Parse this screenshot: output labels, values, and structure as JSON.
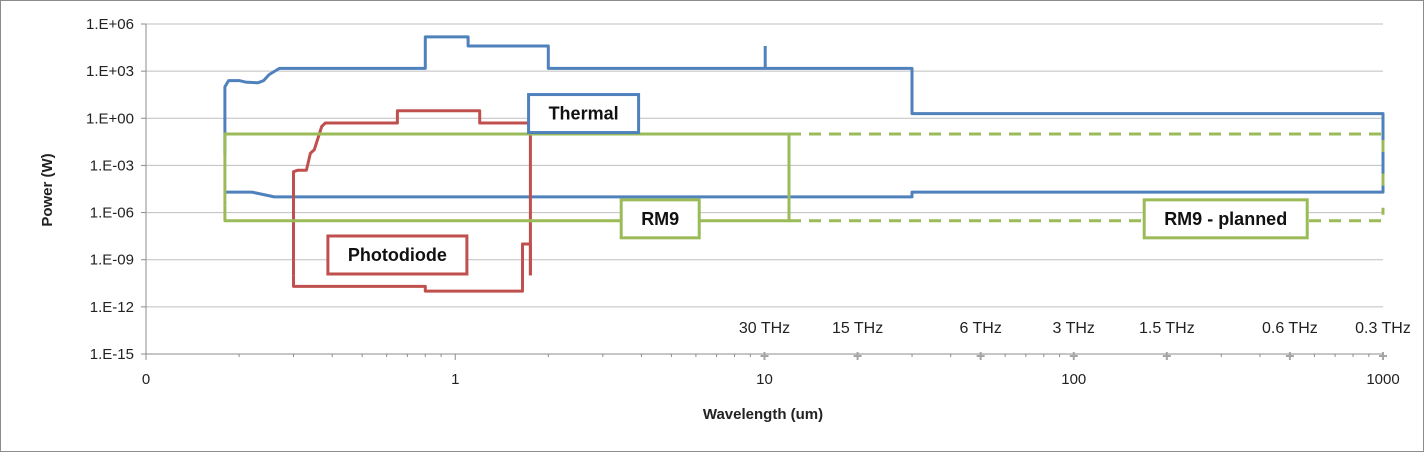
{
  "chart_data": {
    "type": "line",
    "title": "",
    "xlabel": "Wavelength (um)",
    "ylabel": "Power (W)",
    "x_scale": "log",
    "y_scale": "log",
    "xlim": [
      0.1,
      1000
    ],
    "ylim": [
      1e-15,
      1000000.0
    ],
    "grid": "horizontal",
    "x_ticks": [
      {
        "value": 0.1,
        "label": "0"
      },
      {
        "value": 1,
        "label": "1"
      },
      {
        "value": 10,
        "label": "10"
      },
      {
        "value": 100,
        "label": "100"
      },
      {
        "value": 1000,
        "label": "1000"
      }
    ],
    "y_ticks": [
      {
        "value": 1000000.0,
        "label": "1.E+06"
      },
      {
        "value": 1000.0,
        "label": "1.E+03"
      },
      {
        "value": 1,
        "label": "1.E+00"
      },
      {
        "value": 0.001,
        "label": "1.E-03"
      },
      {
        "value": 1e-06,
        "label": "1.E-06"
      },
      {
        "value": 1e-09,
        "label": "1.E-09"
      },
      {
        "value": 1e-12,
        "label": "1.E-12"
      },
      {
        "value": 1e-15,
        "label": "1.E-15"
      }
    ],
    "frequency_markers": [
      {
        "wavelength": 10,
        "label": "30 THz"
      },
      {
        "wavelength": 20,
        "label": "15 THz"
      },
      {
        "wavelength": 50,
        "label": "6 THz"
      },
      {
        "wavelength": 100,
        "label": "3 THz"
      },
      {
        "wavelength": 200,
        "label": "1.5 THz"
      },
      {
        "wavelength": 500,
        "label": "0.6 THz"
      },
      {
        "wavelength": 1000,
        "label": "0.3 THz"
      }
    ],
    "colors": {
      "thermal": "#4f81bd",
      "photodiode": "#c0504d",
      "rm9": "#9bbb59",
      "grid": "#bfbfbf",
      "axis": "#8c8c8c"
    },
    "series": [
      {
        "key": "thermal",
        "color": "#4f81bd",
        "dash": false,
        "regions": [
          {
            "upper": [
              [
                0.18,
                0.005
              ],
              [
                0.18,
                100.0
              ],
              [
                0.185,
                250.0
              ],
              [
                0.2,
                250.0
              ],
              [
                0.21,
                200.0
              ],
              [
                0.23,
                180.0
              ],
              [
                0.24,
                250.0
              ],
              [
                0.25,
                600.0
              ],
              [
                0.27,
                1500.0
              ],
              [
                0.8,
                1500.0
              ],
              [
                0.8,
                150000.0
              ],
              [
                1.1,
                150000.0
              ],
              [
                1.1,
                40000.0
              ],
              [
                2,
                40000.0
              ],
              [
                2,
                1500.0
              ],
              [
                10,
                1500.0
              ],
              [
                30,
                1500.0
              ],
              [
                30,
                2
              ],
              [
                1000,
                2
              ],
              [
                1000,
                0.0002
              ]
            ],
            "lower": [
              [
                0.18,
                2e-05
              ],
              [
                0.22,
                2e-05
              ],
              [
                0.26,
                1e-05
              ],
              [
                30,
                1e-05
              ],
              [
                30,
                2e-05
              ],
              [
                1000,
                2e-05
              ],
              [
                1000,
                0.0002
              ]
            ]
          },
          {
            "upper": [
              [
                10.05,
                1500.0
              ],
              [
                10.05,
                40000.0
              ]
            ],
            "lower": []
          }
        ]
      },
      {
        "key": "photodiode",
        "color": "#c0504d",
        "dash": false,
        "regions": [
          {
            "upper": [
              [
                0.3,
                1e-10
              ],
              [
                0.3,
                0.0004
              ],
              [
                0.31,
                0.0005
              ],
              [
                0.33,
                0.0005
              ],
              [
                0.34,
                0.006
              ],
              [
                0.35,
                0.01
              ],
              [
                0.37,
                0.3
              ],
              [
                0.38,
                0.5
              ],
              [
                0.65,
                0.5
              ],
              [
                0.65,
                3
              ],
              [
                1.2,
                3
              ],
              [
                1.2,
                0.5
              ],
              [
                1.75,
                0.5
              ],
              [
                1.75,
                1e-10
              ]
            ],
            "lower": [
              [
                0.3,
                1e-10
              ],
              [
                0.3,
                2e-11
              ],
              [
                0.8,
                2e-11
              ],
              [
                0.8,
                1e-11
              ],
              [
                1.65,
                1e-11
              ],
              [
                1.65,
                1e-08
              ],
              [
                1.75,
                1e-08
              ],
              [
                1.75,
                1e-10
              ]
            ]
          }
        ]
      },
      {
        "key": "rm9",
        "color": "#9bbb59",
        "dash": false,
        "regions": [
          {
            "upper": [
              [
                0.18,
                3e-06
              ],
              [
                0.18,
                0.1
              ],
              [
                0.2,
                0.1
              ],
              [
                12,
                0.1
              ],
              [
                12,
                3e-06
              ]
            ],
            "lower": [
              [
                0.18,
                3e-06
              ],
              [
                0.18,
                3e-07
              ],
              [
                12,
                3e-07
              ],
              [
                12,
                3e-06
              ]
            ]
          }
        ]
      },
      {
        "key": "rm9-planned",
        "color": "#9bbb59",
        "dash": true,
        "regions": [
          {
            "upper": [
              [
                12,
                0.1
              ],
              [
                1000,
                0.1
              ],
              [
                1000,
                0.003
              ]
            ],
            "lower": [
              [
                12,
                3e-07
              ],
              [
                1000,
                3e-07
              ],
              [
                1000,
                2e-06
              ]
            ]
          },
          {
            "upper": [
              [
                1000,
                0.0003
              ],
              [
                1000,
                3e-05
              ]
            ],
            "lower": []
          }
        ]
      }
    ],
    "annotations": [
      {
        "key": "thermal",
        "text": "Thermal",
        "x": 2.6,
        "y": 2,
        "color": "#4f81bd"
      },
      {
        "key": "photodiode",
        "text": "Photodiode",
        "x": 0.65,
        "y": 2e-09,
        "color": "#c0504d"
      },
      {
        "key": "rm9",
        "text": "RM9",
        "x": 4.6,
        "y": 4e-07,
        "color": "#9bbb59"
      },
      {
        "key": "rm9-planned",
        "text": "RM9 - planned",
        "x": 310,
        "y": 4e-07,
        "color": "#9bbb59"
      }
    ]
  }
}
